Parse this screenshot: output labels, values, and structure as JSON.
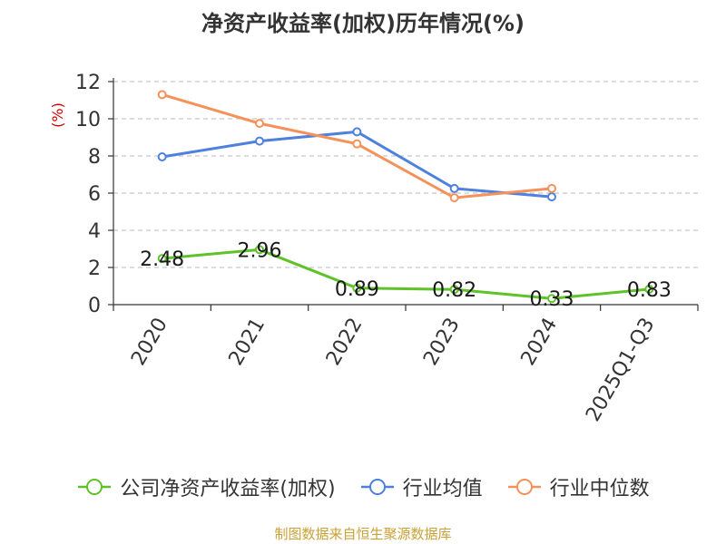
{
  "chart_data": {
    "type": "line",
    "title": "净资产收益率(加权)历年情况(%)",
    "ylabel": "(%)",
    "xlabel": "",
    "ylim": [
      0,
      12
    ],
    "yticks": [
      0,
      2,
      4,
      6,
      8,
      10,
      12
    ],
    "categories": [
      "2020",
      "2021",
      "2022",
      "2023",
      "2024",
      "2025Q1-Q3"
    ],
    "grid": true,
    "legend_position": "bottom",
    "series": [
      {
        "name": "公司净资产收益率(加权)",
        "color": "#5fc22a",
        "values": [
          2.48,
          2.96,
          0.89,
          0.82,
          0.33,
          0.83
        ],
        "labels": [
          "2.48",
          "2.96",
          "0.89",
          "0.82",
          "0.33",
          "0.83"
        ]
      },
      {
        "name": "行业均值",
        "color": "#4e80de",
        "values": [
          7.95,
          8.8,
          9.3,
          6.25,
          5.8,
          null
        ]
      },
      {
        "name": "行业中位数",
        "color": "#f5915a",
        "values": [
          11.3,
          9.75,
          8.65,
          5.75,
          6.25,
          null
        ]
      }
    ]
  },
  "source": "制图数据来自恒生聚源数据库"
}
